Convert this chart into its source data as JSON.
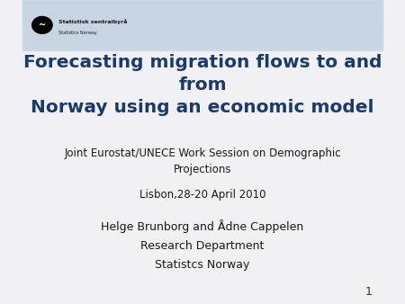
{
  "title_line1": "Forecasting migration flows to and from",
  "title_line2": "Norway using an economic model",
  "subtitle_line1": "Joint Eurostat/UNECE Work Session on Demographic",
  "subtitle_line2": "Projections",
  "subtitle_line3": "Lisbon,28-20 April 2010",
  "author_line1": "Helge Brunborg and Ådne Cappelen",
  "author_line2": "Research Department",
  "author_line3": "Statistcs Norway",
  "page_number": "1",
  "title_color": "#1a3a6b",
  "subtitle_color": "#1a1a1a",
  "author_color": "#1a1a1a",
  "background_color": "#f0f0f5",
  "header_bg_color": "#c8d8e8",
  "logo_text": "Statistisk sentralbyrå",
  "logo_subtext": "Statistics Norway"
}
